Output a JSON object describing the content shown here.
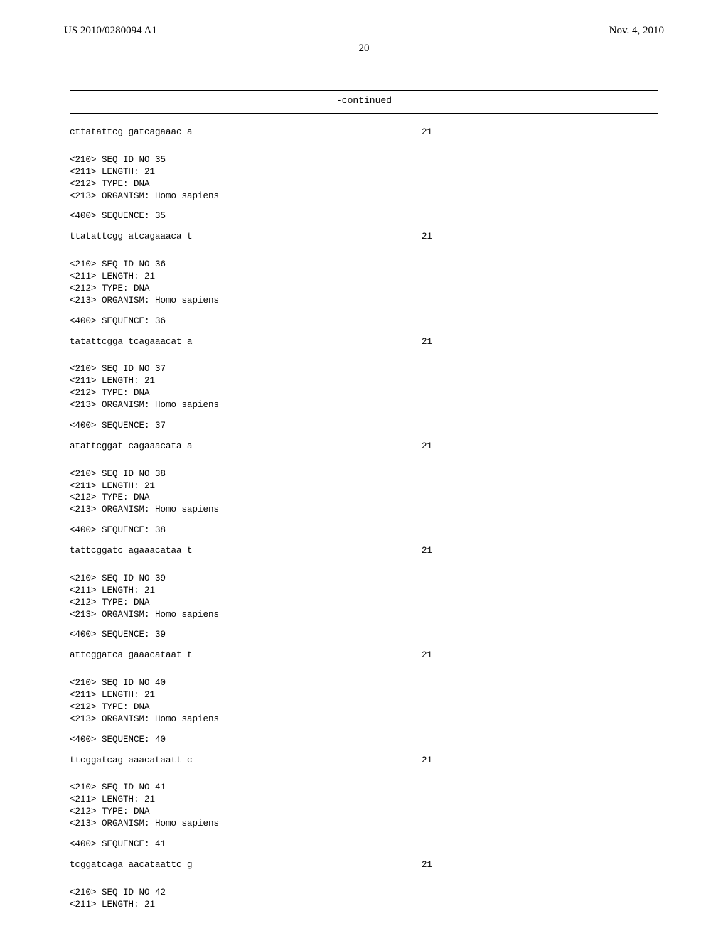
{
  "header": {
    "left": "US 2010/0280094 A1",
    "right": "Nov. 4, 2010"
  },
  "page_number": "20",
  "continued_label": "-continued",
  "entries": [
    {
      "sequence_line": {
        "text": "cttatattcg gatcagaaac a",
        "len": "21"
      },
      "meta": null
    },
    {
      "sequence_line": {
        "text": "ttatattcgg atcagaaaca t",
        "len": "21"
      },
      "meta": {
        "seq_id": "<210> SEQ ID NO 35",
        "length": "<211> LENGTH: 21",
        "type": "<212> TYPE: DNA",
        "organism": "<213> ORGANISM: Homo sapiens",
        "seq_label": "<400> SEQUENCE: 35"
      }
    },
    {
      "sequence_line": {
        "text": "tatattcgga tcagaaacat a",
        "len": "21"
      },
      "meta": {
        "seq_id": "<210> SEQ ID NO 36",
        "length": "<211> LENGTH: 21",
        "type": "<212> TYPE: DNA",
        "organism": "<213> ORGANISM: Homo sapiens",
        "seq_label": "<400> SEQUENCE: 36"
      }
    },
    {
      "sequence_line": {
        "text": "atattcggat cagaaacata a",
        "len": "21"
      },
      "meta": {
        "seq_id": "<210> SEQ ID NO 37",
        "length": "<211> LENGTH: 21",
        "type": "<212> TYPE: DNA",
        "organism": "<213> ORGANISM: Homo sapiens",
        "seq_label": "<400> SEQUENCE: 37"
      }
    },
    {
      "sequence_line": {
        "text": "tattcggatc agaaacataa t",
        "len": "21"
      },
      "meta": {
        "seq_id": "<210> SEQ ID NO 38",
        "length": "<211> LENGTH: 21",
        "type": "<212> TYPE: DNA",
        "organism": "<213> ORGANISM: Homo sapiens",
        "seq_label": "<400> SEQUENCE: 38"
      }
    },
    {
      "sequence_line": {
        "text": "attcggatca gaaacataat t",
        "len": "21"
      },
      "meta": {
        "seq_id": "<210> SEQ ID NO 39",
        "length": "<211> LENGTH: 21",
        "type": "<212> TYPE: DNA",
        "organism": "<213> ORGANISM: Homo sapiens",
        "seq_label": "<400> SEQUENCE: 39"
      }
    },
    {
      "sequence_line": {
        "text": "ttcggatcag aaacataatt c",
        "len": "21"
      },
      "meta": {
        "seq_id": "<210> SEQ ID NO 40",
        "length": "<211> LENGTH: 21",
        "type": "<212> TYPE: DNA",
        "organism": "<213> ORGANISM: Homo sapiens",
        "seq_label": "<400> SEQUENCE: 40"
      }
    },
    {
      "sequence_line": {
        "text": "tcggatcaga aacataattc g",
        "len": "21"
      },
      "meta": {
        "seq_id": "<210> SEQ ID NO 41",
        "length": "<211> LENGTH: 21",
        "type": "<212> TYPE: DNA",
        "organism": "<213> ORGANISM: Homo sapiens",
        "seq_label": "<400> SEQUENCE: 41"
      }
    },
    {
      "sequence_line": null,
      "meta_partial": {
        "seq_id": "<210> SEQ ID NO 42",
        "length": "<211> LENGTH: 21"
      }
    }
  ]
}
